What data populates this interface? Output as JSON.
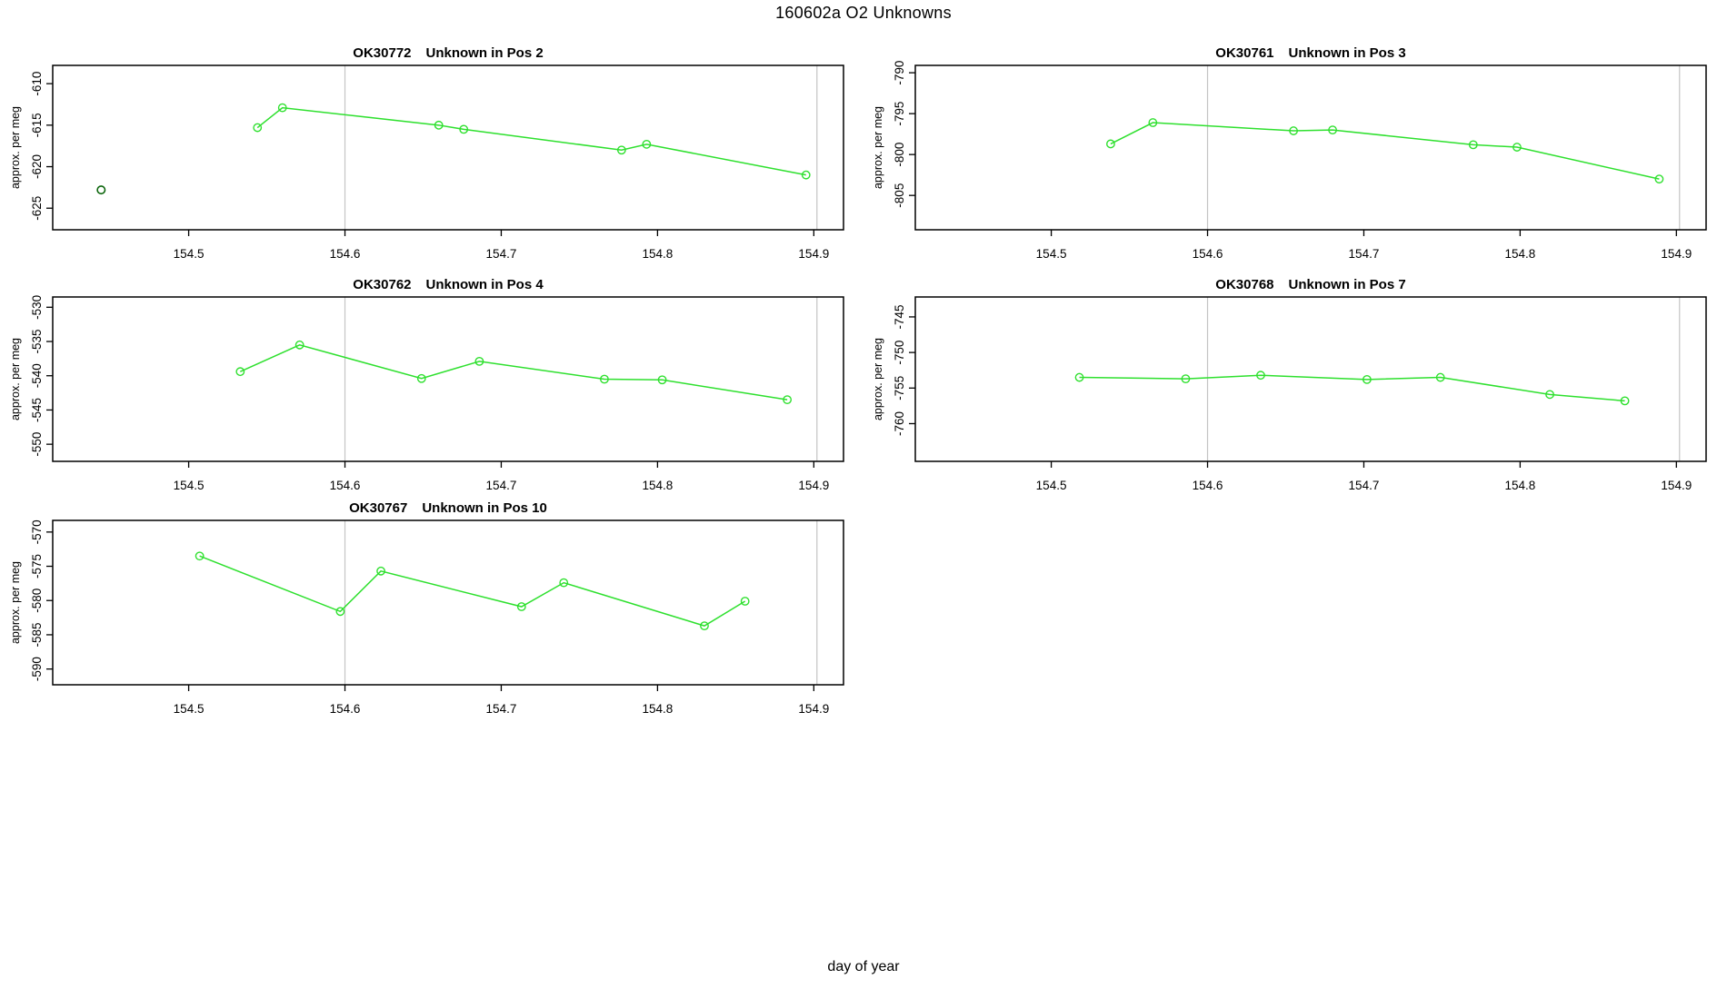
{
  "page_title": "160602a  O2 Unknowns",
  "bottom_axis_label": "day of year",
  "colors": {
    "series_green": "#2ee02e",
    "isolated_dark_green": "#0a640a",
    "vline_gray": "#c4c4c4",
    "axis": "#000000"
  },
  "chart_data": [
    {
      "type": "line",
      "id": "OK30772",
      "subtitle": "Unknown in Pos 2",
      "ylabel": "approx. per meg",
      "row": 0,
      "col": 0,
      "x": [
        154.544,
        154.56,
        154.66,
        154.676,
        154.777,
        154.793,
        154.895
      ],
      "y": [
        -615.3,
        -612.9,
        -615.0,
        -615.5,
        -618.0,
        -617.3,
        -621.0
      ],
      "isolated_points": [
        {
          "x": 154.444,
          "y": -622.8
        }
      ],
      "xlim": [
        154.413,
        154.919
      ],
      "ylim": [
        -627.6,
        -607.8
      ],
      "xticks": [
        154.5,
        154.6,
        154.7,
        154.8,
        154.9
      ],
      "yticks": [
        -610,
        -615,
        -620,
        -625
      ],
      "vlines": [
        154.6,
        154.902
      ],
      "grid": "off",
      "legend": "none"
    },
    {
      "type": "line",
      "id": "OK30761",
      "subtitle": "Unknown in Pos 3",
      "ylabel": "approx. per meg",
      "row": 0,
      "col": 1,
      "x": [
        154.538,
        154.565,
        154.655,
        154.68,
        154.77,
        154.798,
        154.889
      ],
      "y": [
        -798.7,
        -796.1,
        -797.1,
        -797.0,
        -798.8,
        -799.1,
        -803.0
      ],
      "isolated_points": [],
      "xlim": [
        154.413,
        154.919
      ],
      "ylim": [
        -809.2,
        -789.1
      ],
      "xticks": [
        154.5,
        154.6,
        154.7,
        154.8,
        154.9
      ],
      "yticks": [
        -790,
        -795,
        -800,
        -805
      ],
      "vlines": [
        154.6,
        154.902
      ],
      "grid": "off",
      "legend": "none"
    },
    {
      "type": "line",
      "id": "OK30762",
      "subtitle": "Unknown in Pos 4",
      "ylabel": "approx. per meg",
      "row": 1,
      "col": 0,
      "x": [
        154.533,
        154.571,
        154.649,
        154.686,
        154.766,
        154.803,
        154.883
      ],
      "y": [
        -539.4,
        -535.5,
        -540.4,
        -537.9,
        -540.5,
        -540.6,
        -543.5
      ],
      "isolated_points": [],
      "xlim": [
        154.413,
        154.919
      ],
      "ylim": [
        -552.5,
        -528.5
      ],
      "xticks": [
        154.5,
        154.6,
        154.7,
        154.8,
        154.9
      ],
      "yticks": [
        -530,
        -535,
        -540,
        -545,
        -550
      ],
      "vlines": [
        154.6,
        154.902
      ],
      "grid": "off",
      "legend": "none"
    },
    {
      "type": "line",
      "id": "OK30768",
      "subtitle": "Unknown in Pos 7",
      "ylabel": "approx. per meg",
      "row": 1,
      "col": 1,
      "x": [
        154.518,
        154.586,
        154.634,
        154.702,
        154.749,
        154.819,
        154.867
      ],
      "y": [
        -753.5,
        -753.7,
        -753.2,
        -753.8,
        -753.5,
        -755.9,
        -756.8
      ],
      "isolated_points": [],
      "xlim": [
        154.413,
        154.919
      ],
      "ylim": [
        -765.3,
        -742.2
      ],
      "xticks": [
        154.5,
        154.6,
        154.7,
        154.8,
        154.9
      ],
      "yticks": [
        -745,
        -750,
        -755,
        -760
      ],
      "vlines": [
        154.6,
        154.902
      ],
      "grid": "off",
      "legend": "none"
    },
    {
      "type": "line",
      "id": "OK30767",
      "subtitle": "Unknown in Pos 10",
      "ylabel": "approx. per meg",
      "row": 2,
      "col": 0,
      "x": [
        154.507,
        154.597,
        154.623,
        154.713,
        154.74,
        154.83,
        154.856
      ],
      "y": [
        -573.5,
        -581.6,
        -575.7,
        -580.9,
        -577.4,
        -583.7,
        -580.1
      ],
      "isolated_points": [],
      "xlim": [
        154.413,
        154.919
      ],
      "ylim": [
        -592.3,
        -568.3
      ],
      "xticks": [
        154.5,
        154.6,
        154.7,
        154.8,
        154.9
      ],
      "yticks": [
        -570,
        -575,
        -580,
        -585,
        -590
      ],
      "vlines": [
        154.6,
        154.902
      ],
      "grid": "off",
      "legend": "none"
    }
  ]
}
